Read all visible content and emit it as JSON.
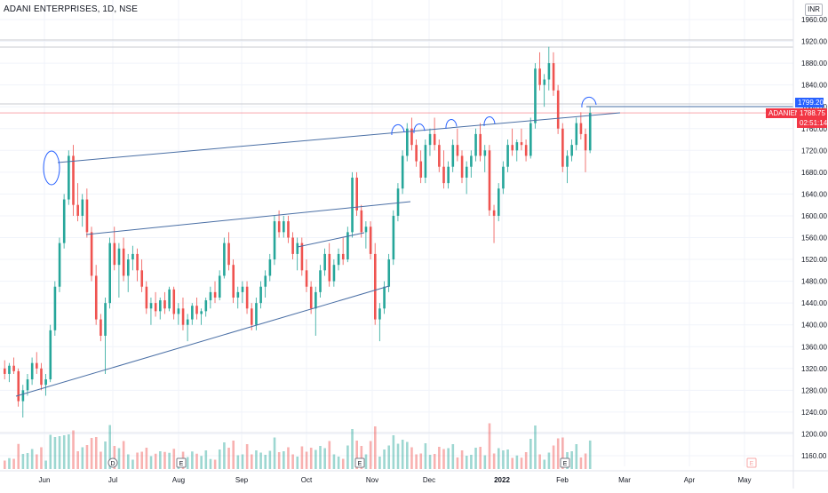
{
  "header": {
    "title": "ADANI ENTERPRISES, 1D, NSE",
    "currency": "INR"
  },
  "price_axis": {
    "ticks": [
      "1960.00",
      "1920.00",
      "1880.00",
      "1840.00",
      "1800.00",
      "1760.00",
      "1720.00",
      "1680.00",
      "1640.00",
      "1600.00",
      "1560.00",
      "1520.00",
      "1480.00",
      "1440.00",
      "1400.00",
      "1360.00",
      "1320.00",
      "1280.00",
      "1240.00",
      "1200.00",
      "1160.00"
    ],
    "last_price_label": "1788.75",
    "countdown": "02:51:14",
    "symbol_tag": "ADANIENT",
    "alert_price": "1799.20"
  },
  "time_axis": {
    "ticks": [
      "Jun",
      "Jul",
      "Aug",
      "Sep",
      "Oct",
      "Nov",
      "Dec",
      "2022",
      "Feb",
      "Mar",
      "Apr",
      "May"
    ]
  },
  "event_markers": [
    "D",
    "E",
    "E",
    "E",
    "E"
  ],
  "colors": {
    "up": "#26a69a",
    "down": "#ef5350",
    "trendline": "#2962ff",
    "line": "#4a6fa5",
    "price_line": "#f23645"
  },
  "chart_data": {
    "type": "candlestick",
    "symbol": "ADANIENT",
    "interval": "1D",
    "exchange": "NSE",
    "ylim": [
      1140,
      1980
    ],
    "last_price": 1788.75,
    "resistance_level": 1799.2,
    "ohlc": [
      [
        1320,
        1335,
        1300,
        1310
      ],
      [
        1310,
        1330,
        1295,
        1325
      ],
      [
        1325,
        1340,
        1310,
        1315
      ],
      [
        1315,
        1320,
        1250,
        1260
      ],
      [
        1260,
        1290,
        1230,
        1280
      ],
      [
        1280,
        1310,
        1270,
        1300
      ],
      [
        1300,
        1340,
        1290,
        1330
      ],
      [
        1330,
        1350,
        1310,
        1320
      ],
      [
        1320,
        1330,
        1280,
        1290
      ],
      [
        1290,
        1310,
        1270,
        1300
      ],
      [
        1300,
        1400,
        1295,
        1390
      ],
      [
        1390,
        1480,
        1380,
        1470
      ],
      [
        1470,
        1560,
        1460,
        1550
      ],
      [
        1550,
        1640,
        1540,
        1630
      ],
      [
        1630,
        1720,
        1620,
        1710
      ],
      [
        1710,
        1730,
        1600,
        1620
      ],
      [
        1620,
        1660,
        1590,
        1600
      ],
      [
        1600,
        1640,
        1580,
        1630
      ],
      [
        1630,
        1650,
        1560,
        1570
      ],
      [
        1570,
        1580,
        1480,
        1490
      ],
      [
        1490,
        1510,
        1400,
        1410
      ],
      [
        1410,
        1420,
        1370,
        1380
      ],
      [
        1380,
        1450,
        1310,
        1440
      ],
      [
        1440,
        1560,
        1430,
        1550
      ],
      [
        1550,
        1580,
        1500,
        1510
      ],
      [
        1510,
        1550,
        1450,
        1540
      ],
      [
        1540,
        1560,
        1480,
        1490
      ],
      [
        1490,
        1530,
        1460,
        1520
      ],
      [
        1520,
        1545,
        1500,
        1530
      ],
      [
        1530,
        1540,
        1480,
        1500
      ],
      [
        1500,
        1520,
        1460,
        1470
      ],
      [
        1470,
        1480,
        1420,
        1430
      ],
      [
        1430,
        1450,
        1400,
        1440
      ],
      [
        1440,
        1460,
        1415,
        1425
      ],
      [
        1425,
        1450,
        1410,
        1445
      ],
      [
        1445,
        1460,
        1420,
        1430
      ],
      [
        1430,
        1470,
        1425,
        1465
      ],
      [
        1465,
        1470,
        1410,
        1420
      ],
      [
        1420,
        1440,
        1400,
        1430
      ],
      [
        1430,
        1450,
        1390,
        1400
      ],
      [
        1400,
        1420,
        1370,
        1410
      ],
      [
        1410,
        1440,
        1400,
        1435
      ],
      [
        1435,
        1450,
        1410,
        1420
      ],
      [
        1420,
        1430,
        1400,
        1425
      ],
      [
        1425,
        1450,
        1415,
        1445
      ],
      [
        1445,
        1470,
        1430,
        1460
      ],
      [
        1460,
        1480,
        1440,
        1450
      ],
      [
        1450,
        1500,
        1445,
        1490
      ],
      [
        1490,
        1560,
        1485,
        1550
      ],
      [
        1550,
        1570,
        1500,
        1510
      ],
      [
        1510,
        1520,
        1440,
        1450
      ],
      [
        1450,
        1470,
        1430,
        1460
      ],
      [
        1460,
        1480,
        1440,
        1470
      ],
      [
        1470,
        1480,
        1420,
        1430
      ],
      [
        1430,
        1440,
        1390,
        1400
      ],
      [
        1400,
        1450,
        1390,
        1440
      ],
      [
        1440,
        1480,
        1430,
        1470
      ],
      [
        1470,
        1500,
        1450,
        1490
      ],
      [
        1490,
        1530,
        1480,
        1520
      ],
      [
        1520,
        1600,
        1510,
        1590
      ],
      [
        1590,
        1610,
        1560,
        1570
      ],
      [
        1570,
        1600,
        1560,
        1590
      ],
      [
        1590,
        1600,
        1550,
        1560
      ],
      [
        1560,
        1570,
        1520,
        1530
      ],
      [
        1530,
        1560,
        1500,
        1550
      ],
      [
        1550,
        1560,
        1490,
        1500
      ],
      [
        1500,
        1520,
        1460,
        1470
      ],
      [
        1470,
        1480,
        1420,
        1430
      ],
      [
        1430,
        1470,
        1380,
        1460
      ],
      [
        1460,
        1510,
        1450,
        1500
      ],
      [
        1500,
        1540,
        1490,
        1530
      ],
      [
        1530,
        1550,
        1470,
        1480
      ],
      [
        1480,
        1520,
        1470,
        1510
      ],
      [
        1510,
        1540,
        1500,
        1530
      ],
      [
        1530,
        1560,
        1510,
        1520
      ],
      [
        1520,
        1580,
        1515,
        1570
      ],
      [
        1570,
        1680,
        1560,
        1670
      ],
      [
        1670,
        1680,
        1600,
        1610
      ],
      [
        1610,
        1620,
        1560,
        1570
      ],
      [
        1570,
        1590,
        1540,
        1580
      ],
      [
        1580,
        1590,
        1520,
        1530
      ],
      [
        1530,
        1550,
        1400,
        1410
      ],
      [
        1410,
        1440,
        1370,
        1430
      ],
      [
        1430,
        1480,
        1420,
        1470
      ],
      [
        1470,
        1530,
        1460,
        1520
      ],
      [
        1520,
        1610,
        1510,
        1600
      ],
      [
        1600,
        1660,
        1590,
        1650
      ],
      [
        1650,
        1720,
        1640,
        1710
      ],
      [
        1710,
        1770,
        1700,
        1760
      ],
      [
        1760,
        1780,
        1720,
        1730
      ],
      [
        1730,
        1740,
        1690,
        1700
      ],
      [
        1700,
        1720,
        1660,
        1670
      ],
      [
        1670,
        1740,
        1660,
        1730
      ],
      [
        1730,
        1760,
        1710,
        1750
      ],
      [
        1750,
        1780,
        1720,
        1730
      ],
      [
        1730,
        1740,
        1680,
        1690
      ],
      [
        1690,
        1720,
        1650,
        1660
      ],
      [
        1660,
        1700,
        1650,
        1690
      ],
      [
        1690,
        1740,
        1680,
        1730
      ],
      [
        1730,
        1760,
        1700,
        1710
      ],
      [
        1710,
        1720,
        1660,
        1670
      ],
      [
        1670,
        1700,
        1640,
        1690
      ],
      [
        1690,
        1720,
        1670,
        1710
      ],
      [
        1710,
        1760,
        1700,
        1750
      ],
      [
        1750,
        1770,
        1700,
        1710
      ],
      [
        1710,
        1730,
        1680,
        1720
      ],
      [
        1720,
        1730,
        1600,
        1610
      ],
      [
        1610,
        1620,
        1550,
        1600
      ],
      [
        1600,
        1660,
        1590,
        1650
      ],
      [
        1650,
        1700,
        1640,
        1690
      ],
      [
        1690,
        1740,
        1680,
        1730
      ],
      [
        1730,
        1760,
        1710,
        1720
      ],
      [
        1720,
        1740,
        1700,
        1735
      ],
      [
        1735,
        1760,
        1720,
        1730
      ],
      [
        1730,
        1740,
        1700,
        1710
      ],
      [
        1710,
        1780,
        1705,
        1770
      ],
      [
        1770,
        1880,
        1760,
        1870
      ],
      [
        1870,
        1900,
        1830,
        1840
      ],
      [
        1840,
        1860,
        1800,
        1850
      ],
      [
        1850,
        1910,
        1830,
        1880
      ],
      [
        1880,
        1900,
        1820,
        1830
      ],
      [
        1830,
        1840,
        1750,
        1760
      ],
      [
        1760,
        1770,
        1680,
        1690
      ],
      [
        1690,
        1720,
        1660,
        1710
      ],
      [
        1710,
        1740,
        1700,
        1730
      ],
      [
        1730,
        1780,
        1720,
        1770
      ],
      [
        1770,
        1790,
        1740,
        1750
      ],
      [
        1750,
        1760,
        1680,
        1720
      ],
      [
        1720,
        1800,
        1715,
        1788.75
      ]
    ]
  }
}
